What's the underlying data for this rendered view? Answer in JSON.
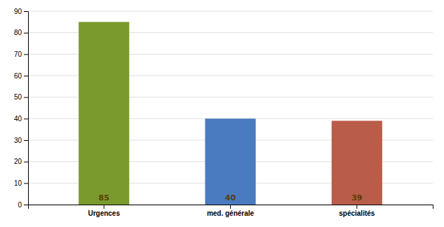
{
  "chart_data": {
    "type": "bar",
    "categories": [
      "Urgences",
      "med. générale",
      "spécialités"
    ],
    "values": [
      85,
      40,
      39
    ],
    "colors": [
      "#7a9a2e",
      "#4a7abf",
      "#b95c4a"
    ],
    "ylim": [
      0,
      90
    ],
    "yticks": [
      0,
      10,
      20,
      30,
      40,
      50,
      60,
      70,
      80,
      90
    ],
    "grid": true,
    "data_labels": true
  }
}
